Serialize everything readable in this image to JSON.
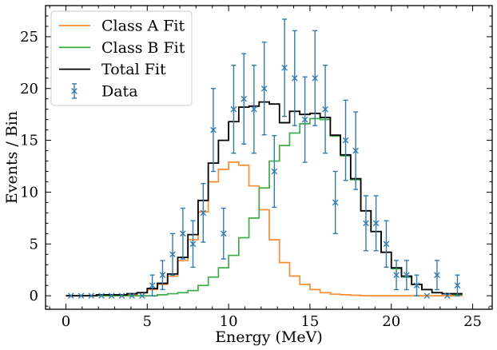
{
  "chart_data": {
    "type": "step+errorbar",
    "xlabel": "Energy (MeV)",
    "ylabel": "Events / Bin",
    "xlim": [
      -1.25,
      26.2
    ],
    "ylim": [
      -1.3,
      28
    ],
    "xticks": [
      0,
      5,
      10,
      15,
      20,
      25
    ],
    "yticks": [
      0,
      5,
      10,
      15,
      20,
      25
    ],
    "grid": false,
    "legend_position": "top-left",
    "colors": {
      "class_a": "#ff8c2e",
      "class_b": "#3fad46",
      "total": "#000000",
      "data": "#2f7cb5"
    },
    "legend": [
      {
        "label": "Class A Fit",
        "style": "line",
        "color": "#ff8c2e"
      },
      {
        "label": "Class B Fit",
        "style": "line",
        "color": "#3fad46"
      },
      {
        "label": "Total Fit",
        "style": "line",
        "color": "#000000"
      },
      {
        "label": "Data",
        "style": "errorbar",
        "color": "#2f7cb5"
      }
    ],
    "bin_edges": [
      0,
      0.625,
      1.25,
      1.875,
      2.5,
      3.125,
      3.75,
      4.375,
      5,
      5.625,
      6.25,
      6.875,
      7.5,
      8.125,
      8.75,
      9.375,
      10,
      10.625,
      11.25,
      11.875,
      12.5,
      13.125,
      13.75,
      14.375,
      15,
      15.625,
      16.25,
      16.875,
      17.5,
      18.125,
      18.75,
      19.375,
      20,
      20.625,
      21.25,
      21.875,
      22.5,
      23.125,
      23.75,
      24.375
    ],
    "series": [
      {
        "name": "Class A Fit",
        "kind": "step",
        "values": [
          0,
          0,
          0,
          0,
          0,
          0,
          0.1,
          0.3,
          0.6,
          1.1,
          1.9,
          3.4,
          5.4,
          8.1,
          11.0,
          12.2,
          12.9,
          12.6,
          10.6,
          8.3,
          5.4,
          3.2,
          1.9,
          1.1,
          0.6,
          0.3,
          0.15,
          0.1,
          0.05,
          0,
          0,
          0,
          0,
          0,
          0,
          0,
          0,
          0,
          0
        ]
      },
      {
        "name": "Class B Fit",
        "kind": "step",
        "values": [
          0,
          0,
          0,
          0,
          0,
          0,
          0,
          0,
          0,
          0.1,
          0.2,
          0.3,
          0.5,
          1.0,
          1.8,
          2.7,
          3.9,
          5.6,
          7.5,
          10.4,
          13.0,
          14.5,
          15.7,
          16.6,
          17.1,
          17.0,
          15.4,
          13.5,
          11.2,
          8.2,
          6.2,
          4.2,
          2.6,
          1.8,
          1.1,
          0.6,
          0.3,
          0.2,
          0.1
        ]
      },
      {
        "name": "Total Fit",
        "kind": "step",
        "values": [
          0,
          0,
          0,
          0.1,
          0.1,
          0.1,
          0.2,
          0.3,
          0.7,
          1.2,
          2.1,
          3.7,
          5.9,
          9.2,
          12.8,
          15.0,
          16.8,
          18.2,
          18.3,
          18.7,
          18.5,
          16.7,
          17.8,
          17.5,
          17.6,
          17.2,
          15.5,
          13.6,
          11.3,
          8.2,
          6.2,
          4.2,
          2.7,
          1.9,
          1.1,
          0.6,
          0.3,
          0.2,
          0.2
        ]
      }
    ],
    "data_points": {
      "name": "Data",
      "x": [
        0.31,
        0.94,
        1.56,
        2.19,
        2.81,
        3.44,
        4.06,
        4.69,
        5.31,
        5.94,
        6.56,
        7.19,
        7.81,
        8.44,
        9.06,
        9.69,
        10.31,
        10.94,
        11.56,
        12.19,
        12.81,
        13.44,
        14.06,
        14.69,
        15.31,
        15.94,
        16.56,
        17.19,
        17.81,
        18.44,
        19.06,
        19.69,
        20.31,
        20.94,
        21.56,
        22.19,
        22.81,
        23.44,
        24.06
      ],
      "y": [
        0,
        0,
        0,
        0,
        0,
        0,
        0,
        0,
        1,
        2,
        4,
        6,
        5,
        8,
        16,
        6,
        18,
        19,
        18,
        20,
        12,
        22,
        21,
        17,
        21,
        18,
        9,
        15,
        14,
        7,
        7,
        5,
        2,
        2,
        1,
        0,
        2,
        0,
        1
      ],
      "yerr": [
        0,
        0,
        0,
        0,
        0,
        0,
        0,
        0,
        1,
        1.4,
        2,
        2.45,
        2.24,
        2.83,
        4,
        2.45,
        4.24,
        4.36,
        4.24,
        4.47,
        3.46,
        4.69,
        4.58,
        4.12,
        4.58,
        4.24,
        3,
        3.87,
        3.74,
        2.65,
        2.65,
        2.24,
        1.41,
        1.41,
        1,
        0,
        1.41,
        0,
        1
      ]
    }
  }
}
